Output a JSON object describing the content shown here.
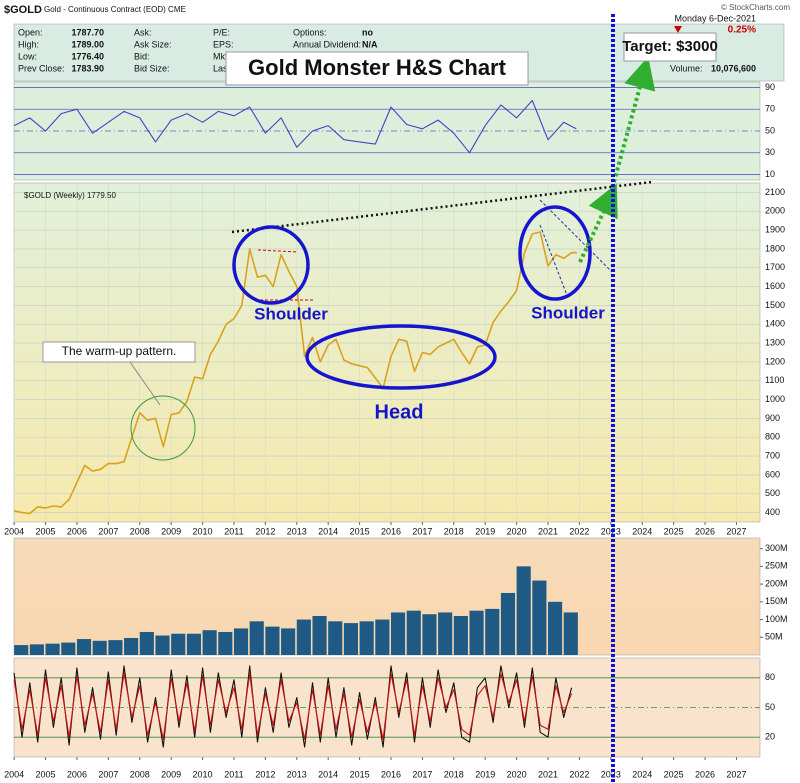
{
  "header": {
    "symbol": "$GOLD",
    "description": "Gold - Continuous Contract (EOD) CME",
    "copyright": "© StockCharts.com",
    "date": "Monday  6-Dec-2021",
    "change": "0.25%",
    "volume_label": "Volume:",
    "volume": "10,076,600",
    "quote": [
      [
        [
          "Open:",
          "1787.70"
        ],
        [
          "High:",
          "1789.00"
        ],
        [
          "Low:",
          "1776.40"
        ],
        [
          "Prev Close:",
          "1783.90"
        ]
      ],
      [
        [
          "Ask:"
        ],
        [
          "Ask Size:"
        ],
        [
          "Bid:"
        ],
        [
          "Bid Size:"
        ]
      ],
      [
        [
          "P/E:"
        ],
        [
          "EPS:"
        ],
        [
          "Mkt"
        ],
        [
          "Las"
        ]
      ],
      [
        [
          "Options:",
          "no"
        ],
        [
          "Annual Dividend:",
          "N/A"
        ]
      ]
    ]
  },
  "chart_data": [
    {
      "type": "line",
      "color": "#4444c8",
      "xlim": [
        2003.55,
        2027.75
      ],
      "ylim": [
        5,
        95
      ],
      "yticks": [
        10,
        30,
        50,
        70,
        90
      ],
      "x": [
        2004,
        2004.5,
        2005,
        2005.5,
        2006,
        2006.5,
        2007,
        2007.5,
        2008,
        2008.5,
        2009,
        2009.5,
        2010,
        2010.5,
        2011,
        2011.5,
        2012,
        2012.5,
        2013,
        2013.5,
        2014,
        2014.5,
        2015,
        2015.5,
        2016,
        2016.5,
        2017,
        2017.5,
        2018,
        2018.5,
        2019,
        2019.5,
        2020,
        2020.5,
        2021,
        2021.5,
        2021.9
      ],
      "values": [
        55,
        62,
        50,
        66,
        70,
        48,
        58,
        68,
        62,
        40,
        60,
        66,
        58,
        68,
        64,
        72,
        48,
        62,
        35,
        50,
        55,
        42,
        40,
        38,
        72,
        56,
        52,
        60,
        48,
        30,
        55,
        74,
        62,
        78,
        42,
        58,
        52
      ]
    },
    {
      "type": "line",
      "title": "$GOLD (Weekly) 1779.50",
      "color": "#d9a21c",
      "xlim": [
        2003.55,
        2027.75
      ],
      "ylim": [
        350,
        2150
      ],
      "yticks": [
        400,
        500,
        600,
        700,
        800,
        900,
        1000,
        1100,
        1200,
        1300,
        1400,
        1500,
        1600,
        1700,
        1800,
        1900,
        2000,
        2100
      ],
      "xticks": [
        2004,
        2005,
        2006,
        2007,
        2008,
        2009,
        2010,
        2011,
        2012,
        2013,
        2014,
        2015,
        2016,
        2017,
        2018,
        2019,
        2020,
        2021,
        2022,
        2023,
        2024,
        2025,
        2026,
        2027
      ],
      "x": [
        2004,
        2004.25,
        2004.5,
        2004.75,
        2005,
        2005.25,
        2005.5,
        2005.75,
        2006,
        2006.25,
        2006.5,
        2006.75,
        2007,
        2007.25,
        2007.5,
        2007.75,
        2008,
        2008.25,
        2008.5,
        2008.75,
        2009,
        2009.25,
        2009.5,
        2009.75,
        2010,
        2010.25,
        2010.5,
        2010.75,
        2011,
        2011.25,
        2011.5,
        2011.75,
        2012,
        2012.25,
        2012.5,
        2012.75,
        2013,
        2013.25,
        2013.5,
        2013.75,
        2014,
        2014.25,
        2014.5,
        2014.75,
        2015,
        2015.25,
        2015.5,
        2015.75,
        2016,
        2016.25,
        2016.5,
        2016.75,
        2017,
        2017.25,
        2017.5,
        2017.75,
        2018,
        2018.25,
        2018.5,
        2018.75,
        2019,
        2019.25,
        2019.5,
        2019.75,
        2020,
        2020.25,
        2020.5,
        2020.75,
        2021,
        2021.25,
        2021.5,
        2021.75,
        2021.92
      ],
      "values": [
        410,
        400,
        395,
        430,
        425,
        435,
        430,
        470,
        560,
        650,
        620,
        630,
        660,
        660,
        670,
        800,
        930,
        890,
        900,
        750,
        920,
        930,
        990,
        1120,
        1110,
        1240,
        1310,
        1400,
        1430,
        1500,
        1800,
        1650,
        1660,
        1600,
        1770,
        1680,
        1600,
        1230,
        1330,
        1200,
        1290,
        1320,
        1210,
        1190,
        1180,
        1170,
        1115,
        1060,
        1230,
        1320,
        1310,
        1150,
        1250,
        1240,
        1280,
        1300,
        1320,
        1250,
        1190,
        1280,
        1290,
        1410,
        1470,
        1520,
        1580,
        1780,
        1880,
        1890,
        1710,
        1770,
        1750,
        1780,
        1780
      ],
      "annotations": [
        "Gold Monster H&S Chart",
        "Target: $3000",
        "Shoulder",
        "Shoulder",
        "Head",
        "The warm-up pattern."
      ]
    },
    {
      "type": "bar",
      "color": "#1f5a85",
      "xlim": [
        2003.55,
        2027.75
      ],
      "ylim": [
        0,
        330
      ],
      "yticks": [
        {
          "value": 50,
          "label": "50M"
        },
        {
          "value": 100,
          "label": "100M"
        },
        {
          "value": 150,
          "label": "150M"
        },
        {
          "value": 200,
          "label": "200M"
        },
        {
          "value": 250,
          "label": "250M"
        },
        {
          "value": 300,
          "label": "300M"
        }
      ],
      "x": [
        2004,
        2004.5,
        2005,
        2005.5,
        2006,
        2006.5,
        2007,
        2007.5,
        2008,
        2008.5,
        2009,
        2009.5,
        2010,
        2010.5,
        2011,
        2011.5,
        2012,
        2012.5,
        2013,
        2013.5,
        2014,
        2014.5,
        2015,
        2015.5,
        2016,
        2016.5,
        2017,
        2017.5,
        2018,
        2018.5,
        2019,
        2019.5,
        2020,
        2020.5,
        2021,
        2021.5
      ],
      "values": [
        28,
        30,
        32,
        35,
        45,
        40,
        42,
        48,
        65,
        55,
        60,
        60,
        70,
        65,
        75,
        95,
        80,
        75,
        100,
        110,
        95,
        90,
        95,
        100,
        120,
        125,
        115,
        120,
        110,
        125,
        130,
        175,
        250,
        210,
        150,
        120
      ]
    },
    {
      "type": "line",
      "xlim": [
        2003.55,
        2027.75
      ],
      "ylim": [
        0,
        100
      ],
      "yticks": [
        20,
        50,
        80
      ],
      "xticks": [
        2004,
        2005,
        2006,
        2007,
        2008,
        2009,
        2010,
        2011,
        2012,
        2013,
        2014,
        2015,
        2016,
        2017,
        2018,
        2019,
        2020,
        2021,
        2022,
        2023,
        2024,
        2025,
        2026,
        2027
      ],
      "x": [
        2004,
        2004.25,
        2004.5,
        2004.75,
        2005,
        2005.25,
        2005.5,
        2005.75,
        2006,
        2006.25,
        2006.5,
        2006.75,
        2007,
        2007.25,
        2007.5,
        2007.75,
        2008,
        2008.25,
        2008.5,
        2008.75,
        2009,
        2009.25,
        2009.5,
        2009.75,
        2010,
        2010.25,
        2010.5,
        2010.75,
        2011,
        2011.25,
        2011.5,
        2011.75,
        2012,
        2012.25,
        2012.5,
        2012.75,
        2013,
        2013.25,
        2013.5,
        2013.75,
        2014,
        2014.25,
        2014.5,
        2014.75,
        2015,
        2015.25,
        2015.5,
        2015.75,
        2016,
        2016.25,
        2016.5,
        2016.75,
        2017,
        2017.25,
        2017.5,
        2017.75,
        2018,
        2018.25,
        2018.5,
        2018.75,
        2019,
        2019.25,
        2019.5,
        2019.75,
        2020,
        2020.25,
        2020.5,
        2020.75,
        2021,
        2021.25,
        2021.5,
        2021.75
      ],
      "series": [
        {
          "color": "#111111",
          "values": [
            85,
            20,
            75,
            15,
            88,
            30,
            80,
            12,
            90,
            25,
            70,
            18,
            86,
            22,
            92,
            35,
            80,
            15,
            60,
            10,
            88,
            30,
            82,
            20,
            90,
            25,
            85,
            40,
            78,
            20,
            92,
            15,
            70,
            25,
            85,
            30,
            60,
            10,
            75,
            15,
            80,
            20,
            70,
            12,
            65,
            18,
            60,
            10,
            92,
            40,
            85,
            15,
            80,
            30,
            88,
            45,
            75,
            20,
            15,
            70,
            80,
            35,
            92,
            50,
            85,
            30,
            90,
            25,
            20,
            80,
            40,
            70
          ]
        },
        {
          "color": "#cc1111",
          "values": [
            78,
            28,
            68,
            22,
            80,
            36,
            72,
            20,
            82,
            32,
            64,
            25,
            78,
            28,
            85,
            40,
            72,
            22,
            55,
            18,
            80,
            36,
            75,
            26,
            82,
            32,
            78,
            45,
            70,
            28,
            84,
            22,
            64,
            32,
            78,
            36,
            55,
            18,
            68,
            22,
            72,
            28,
            64,
            20,
            58,
            25,
            55,
            18,
            84,
            45,
            78,
            22,
            72,
            36,
            80,
            50,
            68,
            28,
            22,
            62,
            72,
            40,
            84,
            55,
            78,
            36,
            82,
            32,
            28,
            72,
            45,
            64
          ]
        }
      ]
    }
  ]
}
